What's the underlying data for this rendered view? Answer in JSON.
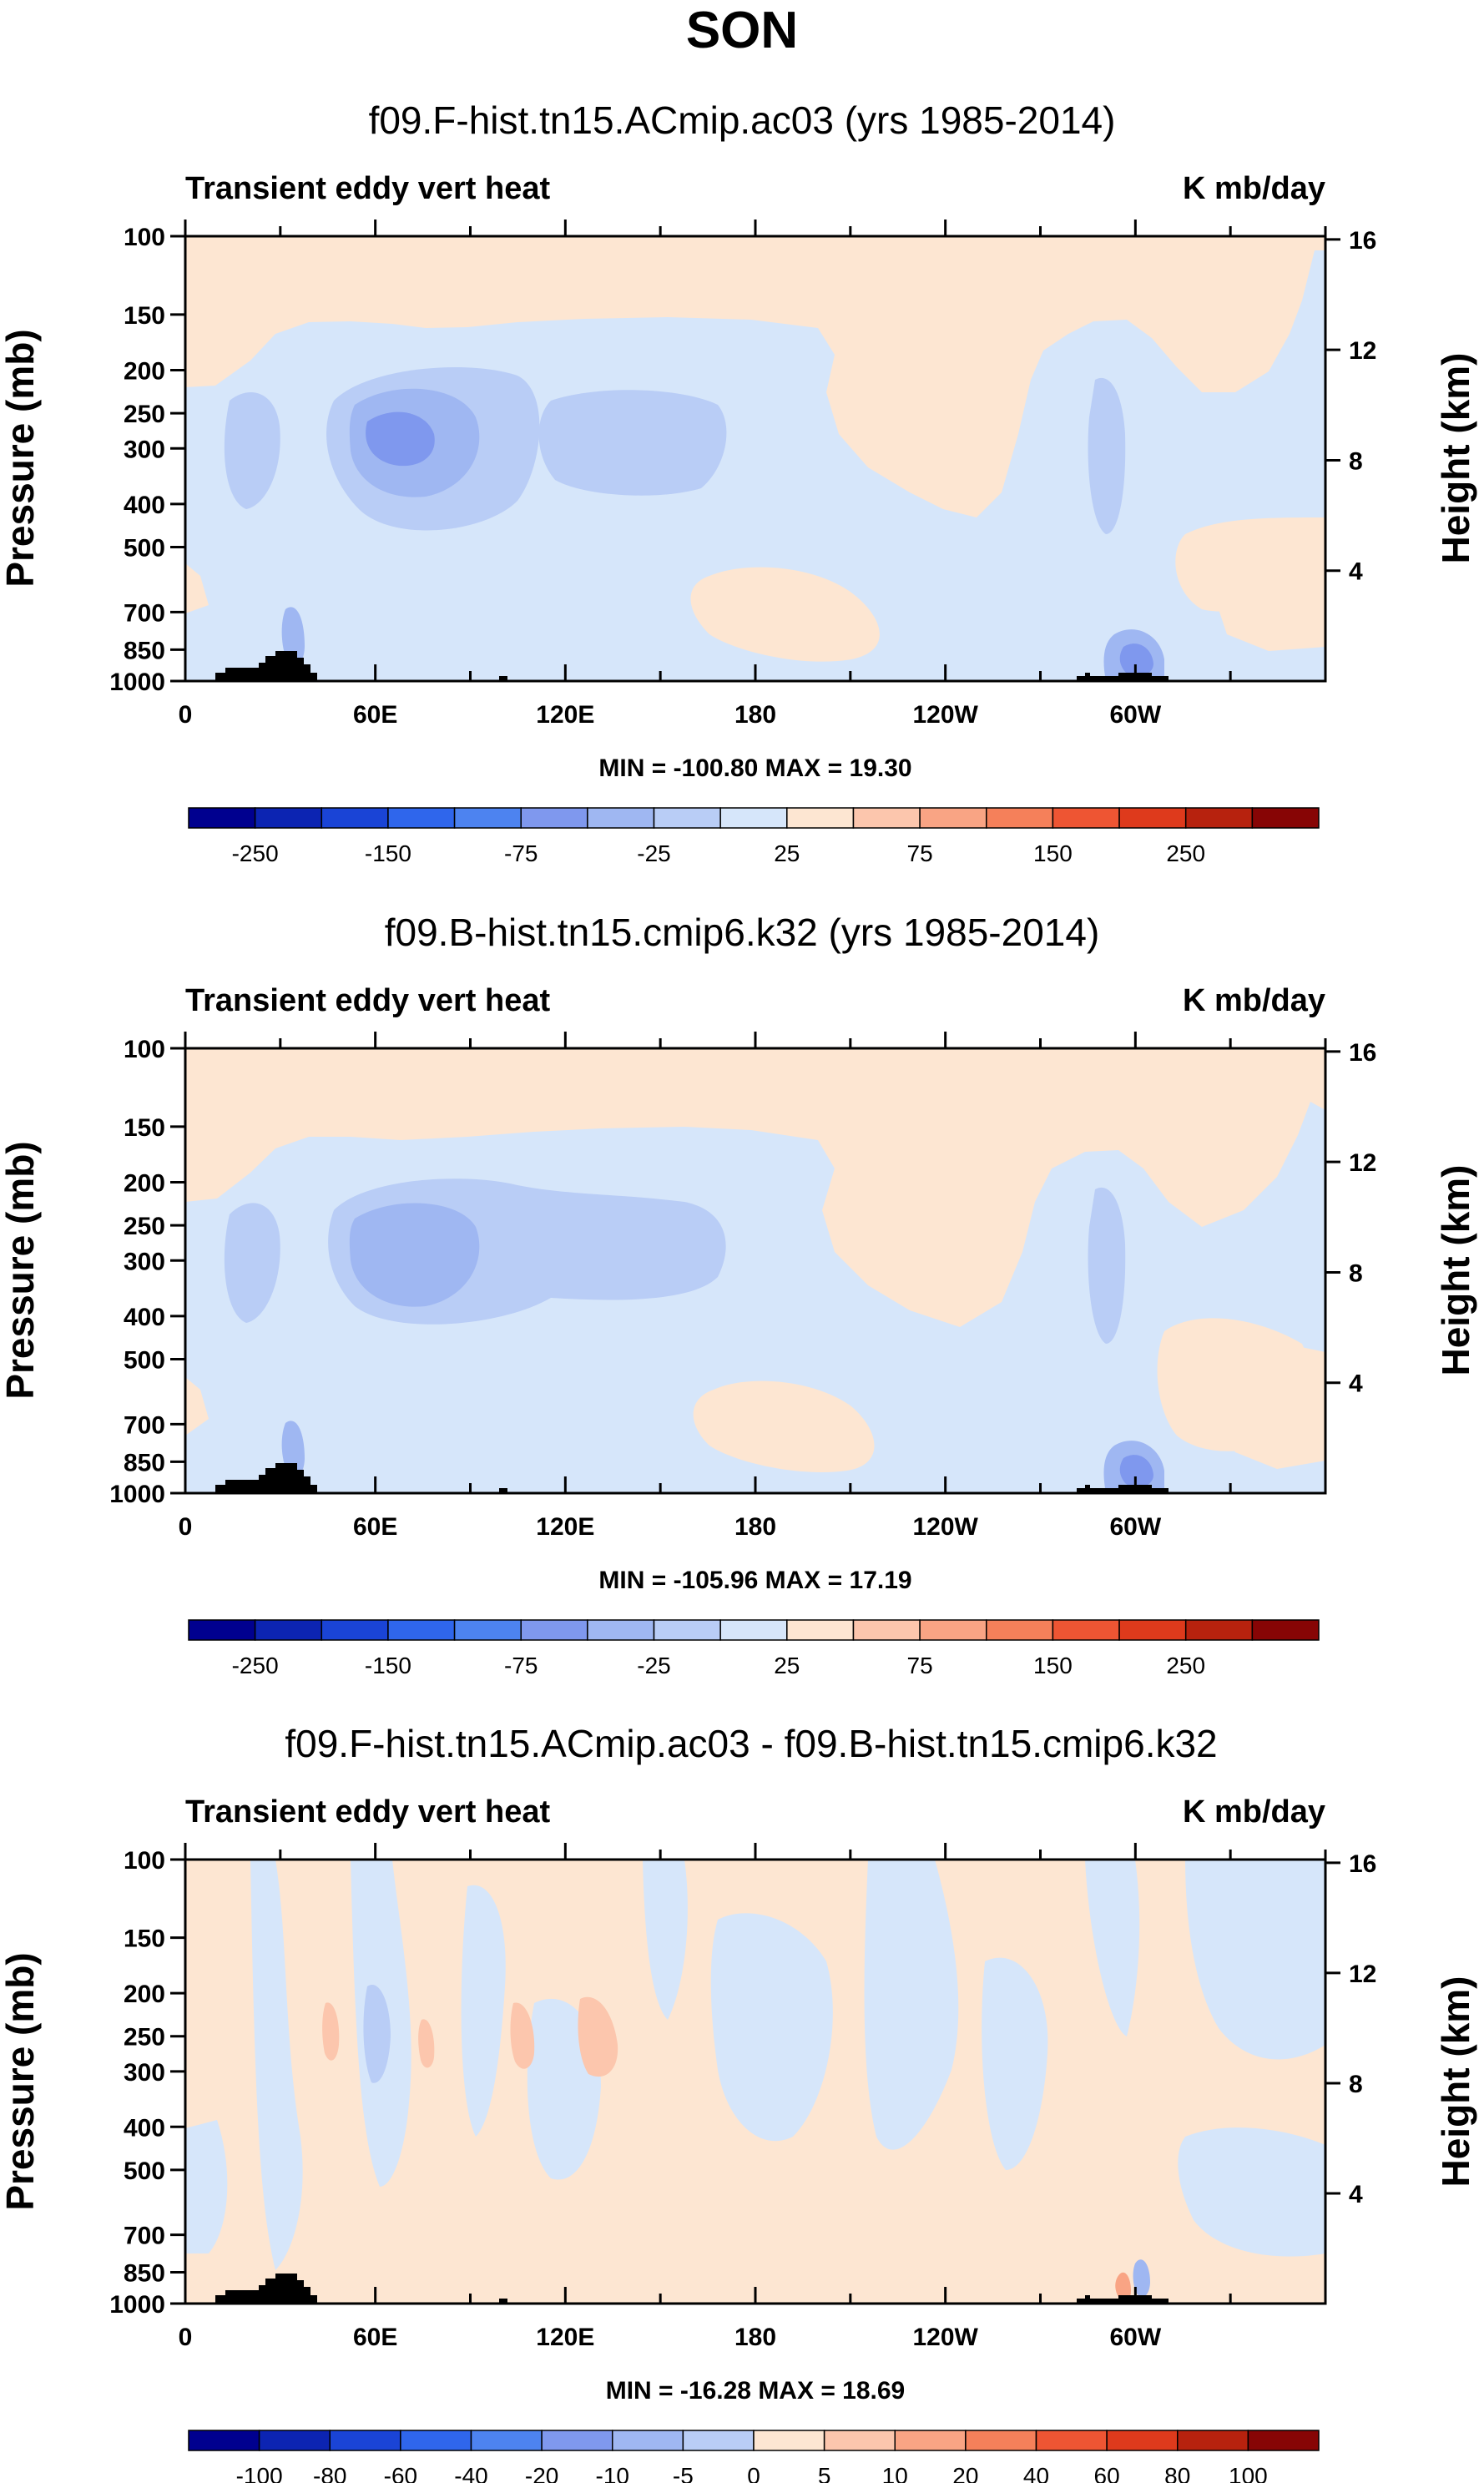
{
  "page_title": "SON",
  "colors": {
    "frame": "#000000",
    "topography": "#000000",
    "panel_background": "#fde6d2",
    "neg_5_25": "#d6e6fa",
    "neg_25_50": "#b9cdf6",
    "neg_50_75": "#9fb7f2",
    "neg_75_100": "#7f98ee",
    "pos_5_25": "#fde6d2"
  },
  "chart_data": [
    {
      "type": "heatmap",
      "title": "f09.F-hist.tn15.ACmip.ac03 (yrs 1985-2014)",
      "left_label": "Transient eddy vert heat",
      "right_label": "K mb/day",
      "ylabel": "Pressure (mb)",
      "y2label": "Height (km)",
      "x_ticks": [
        "0",
        "60E",
        "120E",
        "180",
        "120W",
        "60W"
      ],
      "x_tick_values": [
        0,
        60,
        120,
        180,
        240,
        300
      ],
      "xlim": [
        0,
        360
      ],
      "y_ticks": [
        "100",
        "150",
        "200",
        "250",
        "300",
        "400",
        "500",
        "700",
        "850",
        "1000"
      ],
      "y_tick_values": [
        100,
        150,
        200,
        250,
        300,
        400,
        500,
        700,
        850,
        1000
      ],
      "ylim": [
        100,
        1000
      ],
      "y2_ticks": [
        "16",
        "12",
        "8",
        "4"
      ],
      "min_max_text": "MIN = -100.80   MAX =  19.30",
      "min": -100.8,
      "max": 19.3,
      "colorbar_labels": [
        "-250",
        "-150",
        "-75",
        "-25",
        "25",
        "75",
        "150",
        "250"
      ],
      "colorbar_levels": [
        -250,
        -200,
        -150,
        -100,
        -75,
        -50,
        -25,
        -5,
        5,
        25,
        50,
        75,
        100,
        150,
        200,
        250
      ]
    },
    {
      "type": "heatmap",
      "title": "f09.B-hist.tn15.cmip6.k32 (yrs 1985-2014)",
      "left_label": "Transient eddy vert heat",
      "right_label": "K mb/day",
      "ylabel": "Pressure (mb)",
      "y2label": "Height (km)",
      "x_ticks": [
        "0",
        "60E",
        "120E",
        "180",
        "120W",
        "60W"
      ],
      "x_tick_values": [
        0,
        60,
        120,
        180,
        240,
        300
      ],
      "xlim": [
        0,
        360
      ],
      "y_ticks": [
        "100",
        "150",
        "200",
        "250",
        "300",
        "400",
        "500",
        "700",
        "850",
        "1000"
      ],
      "y_tick_values": [
        100,
        150,
        200,
        250,
        300,
        400,
        500,
        700,
        850,
        1000
      ],
      "ylim": [
        100,
        1000
      ],
      "y2_ticks": [
        "16",
        "12",
        "8",
        "4"
      ],
      "min_max_text": "MIN = -105.96   MAX =  17.19",
      "min": -105.96,
      "max": 17.19,
      "colorbar_labels": [
        "-250",
        "-150",
        "-75",
        "-25",
        "25",
        "75",
        "150",
        "250"
      ],
      "colorbar_levels": [
        -250,
        -200,
        -150,
        -100,
        -75,
        -50,
        -25,
        -5,
        5,
        25,
        50,
        75,
        100,
        150,
        200,
        250
      ]
    },
    {
      "type": "heatmap",
      "title": "f09.F-hist.tn15.ACmip.ac03 - f09.B-hist.tn15.cmip6.k32",
      "left_label": "Transient eddy vert heat",
      "right_label": "K mb/day",
      "ylabel": "Pressure (mb)",
      "y2label": "Height (km)",
      "x_ticks": [
        "0",
        "60E",
        "120E",
        "180",
        "120W",
        "60W"
      ],
      "x_tick_values": [
        0,
        60,
        120,
        180,
        240,
        300
      ],
      "xlim": [
        0,
        360
      ],
      "y_ticks": [
        "100",
        "150",
        "200",
        "250",
        "300",
        "400",
        "500",
        "700",
        "850",
        "1000"
      ],
      "y_tick_values": [
        100,
        150,
        200,
        250,
        300,
        400,
        500,
        700,
        850,
        1000
      ],
      "ylim": [
        100,
        1000
      ],
      "y2_ticks": [
        "16",
        "12",
        "8",
        "4"
      ],
      "min_max_text": "MIN = -16.28   MAX =  18.69",
      "min": -16.28,
      "max": 18.69,
      "colorbar_labels": [
        "-100",
        "-80",
        "-60",
        "-40",
        "-20",
        "-10",
        "-5",
        "0",
        "5",
        "10",
        "20",
        "40",
        "60",
        "80",
        "100"
      ],
      "colorbar_levels": [
        -100,
        -80,
        -60,
        -40,
        -20,
        -10,
        -5,
        0,
        5,
        10,
        20,
        40,
        60,
        80,
        100
      ]
    }
  ],
  "colorbar_colors": [
    "#00008f",
    "#0c24b2",
    "#1a44d6",
    "#2f66ec",
    "#4d83f0",
    "#7f98ee",
    "#9fb7f2",
    "#b9cdf6",
    "#d6e6fa",
    "#fde6d2",
    "#fcc6ad",
    "#f9a484",
    "#f5805a",
    "#ee5533",
    "#de3a1c",
    "#b7220e",
    "#870505"
  ]
}
